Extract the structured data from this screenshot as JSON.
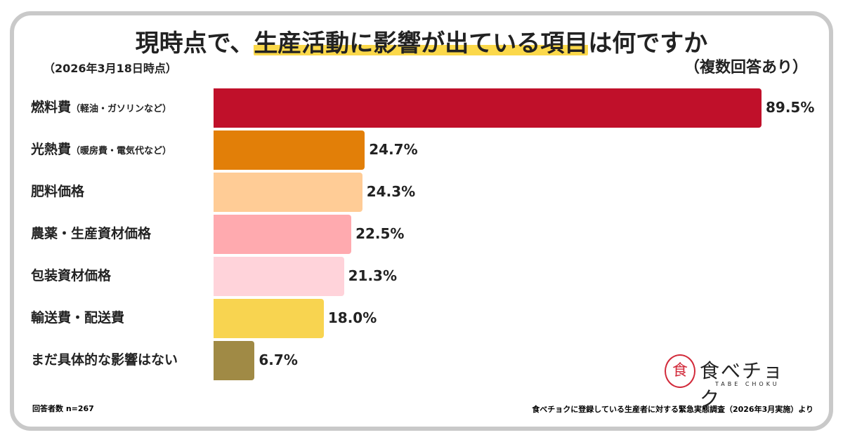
{
  "chart_data": {
    "type": "bar",
    "orientation": "horizontal",
    "title_prefix": "現時点で、",
    "title_highlight": "生産活動に影響が出ている項目",
    "title_suffix": "は何ですか",
    "date_note": "（2026年3月18日時点）",
    "multi_note": "（複数回答あり）",
    "categories": [
      {
        "main": "燃料費",
        "sub": "（軽油・ガソリンなど）"
      },
      {
        "main": "光熱費",
        "sub": "（暖房費・電気代など）"
      },
      {
        "main": "肥料価格",
        "sub": ""
      },
      {
        "main": "農薬・生産資材価格",
        "sub": ""
      },
      {
        "main": "包装資材価格",
        "sub": ""
      },
      {
        "main": "輸送費・配送費",
        "sub": ""
      },
      {
        "main": "まだ具体的な影響はない",
        "sub": ""
      }
    ],
    "values": [
      89.5,
      24.7,
      24.3,
      22.5,
      21.3,
      18.0,
      6.7
    ],
    "value_labels": [
      "89.5%",
      "24.7%",
      "24.3%",
      "22.5%",
      "21.3%",
      "18.0%",
      "6.7%"
    ],
    "colors": [
      "#c0102a",
      "#e27f08",
      "#ffcc96",
      "#ffaaaf",
      "#ffd3da",
      "#f8d450",
      "#a08a45"
    ],
    "unit": "%",
    "xlim": [
      0,
      100
    ],
    "grid": false
  },
  "footer": {
    "n": "回答者数 n=267",
    "source": "食べチョクに登録している生産者に対する緊急実態調査（2026年3月実施）より"
  },
  "logo": {
    "mark": "食",
    "word": "食べチョク",
    "sub": "TABE CHOKU"
  }
}
